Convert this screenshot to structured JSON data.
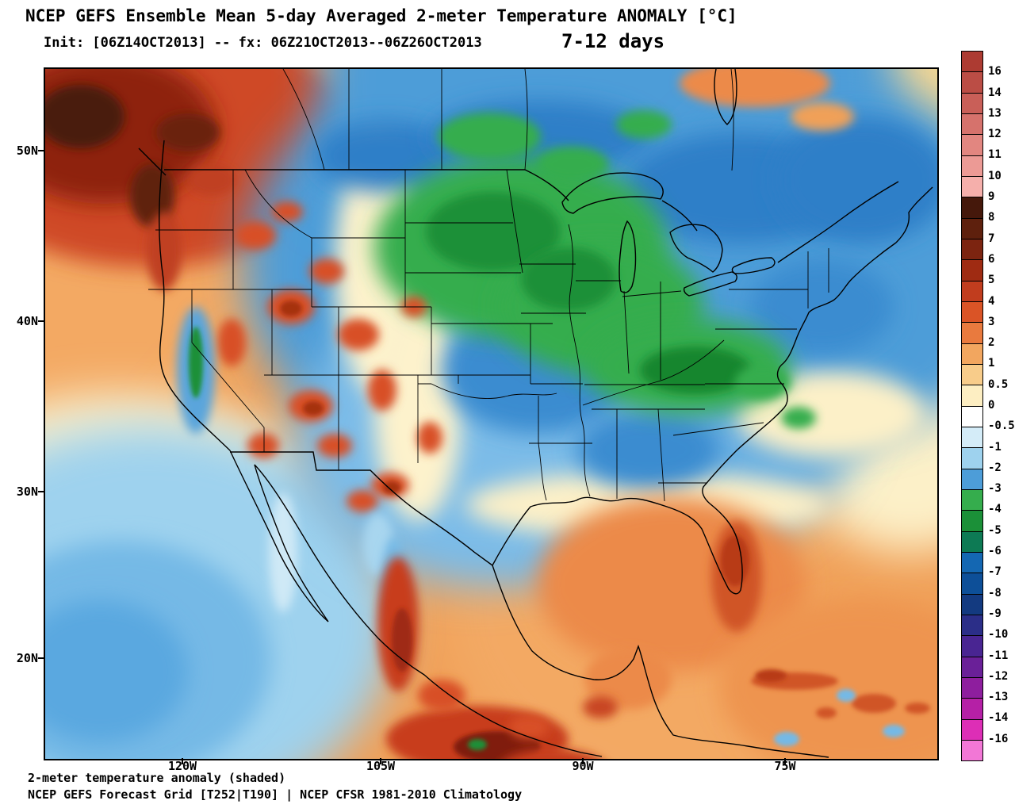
{
  "header": {
    "title": "NCEP GEFS Ensemble Mean 5-day Averaged 2-meter Temperature ANOMALY [°C]",
    "init_line": "Init: [06Z14OCT2013] -- fx: 06Z21OCT2013--06Z26OCT2013",
    "period_label": "7-12 days"
  },
  "map": {
    "lat_labels": [
      "50N",
      "40N",
      "30N",
      "20N"
    ],
    "lon_labels": [
      "120W",
      "105W",
      "90W",
      "75W"
    ]
  },
  "colorbar": {
    "labels": [
      "16",
      "14",
      "13",
      "12",
      "11",
      "10",
      "9",
      "8",
      "7",
      "6",
      "5",
      "4",
      "3",
      "2",
      "1",
      "0.5",
      "0",
      "-0.5",
      "-1",
      "-2",
      "-3",
      "-4",
      "-5",
      "-6",
      "-7",
      "-8",
      "-9",
      "-10",
      "-11",
      "-12",
      "-13",
      "-14",
      "-16"
    ],
    "colors": [
      "#ad3b32",
      "#bb4d45",
      "#c95f58",
      "#d6726c",
      "#e28680",
      "#ec9a95",
      "#f5afab",
      "#45180b",
      "#5e200d",
      "#7c2410",
      "#9f2b12",
      "#c13d1e",
      "#da5426",
      "#e97a3e",
      "#f2a65f",
      "#f8cc8a",
      "#fdeec2",
      "#ffffff",
      "#d4ecf8",
      "#9ed2ee",
      "#4d9dd8",
      "#35ad4d",
      "#1b9038",
      "#0d7a54",
      "#1467b2",
      "#0d4f98",
      "#133a80",
      "#2b2e88",
      "#492592",
      "#6a2098",
      "#8e1e9e",
      "#b520a6",
      "#dd2eb6",
      "#f277d6"
    ]
  },
  "footer": {
    "line1": "2-meter temperature anomaly (shaded)",
    "line2": "NCEP GEFS Forecast Grid [T252|T190] | NCEP CFSR 1981-2010 Climatology"
  },
  "chart_data": {
    "type": "heatmap",
    "title": "NCEP GEFS Ensemble Mean 5-day Averaged 2-meter Temperature ANOMALY [°C]",
    "variable": "2-meter temperature anomaly (shaded), 5-day averaged GEFS ensemble mean",
    "init": "06Z14OCT2013",
    "valid_window": "06Z21OCT2013-06Z26OCT2013",
    "lead": "7-12 days",
    "units": "°C",
    "climatology": "NCEP CFSR 1981-2010",
    "grid": "T252|T190",
    "x_ticks": [
      "120W",
      "105W",
      "90W",
      "75W"
    ],
    "y_ticks": [
      "50N",
      "40N",
      "30N",
      "20N"
    ],
    "scale_boundaries_degC": [
      16,
      14,
      13,
      12,
      11,
      10,
      9,
      8,
      7,
      6,
      5,
      4,
      3,
      2,
      1,
      0.5,
      0,
      -0.5,
      -1,
      -2,
      -3,
      -4,
      -5,
      -6,
      -7,
      -8,
      -9,
      -10,
      -11,
      -12,
      -13,
      -14,
      -16
    ],
    "regions": [
      {
        "area": "British Columbia / Pacific Northwest coast",
        "anomaly_c": "+5 to +9"
      },
      {
        "area": "Interior western US (Great Basin, Rockies, Southwest)",
        "anomaly_c": "+1 to +4 mottled"
      },
      {
        "area": "Upper Midwest core (MN, WI, IA, IL)",
        "anomaly_c": "-3 to -5"
      },
      {
        "area": "Ohio Valley / central Appalachians",
        "anomaly_c": "-3 to -4"
      },
      {
        "area": "Central and eastern US and southern Canada",
        "anomaly_c": "-1 to -3"
      },
      {
        "area": "Texas and southern Plains",
        "anomaly_c": "-1 to -2"
      },
      {
        "area": "Gulf of Mexico, Florida, Caribbean, western Atlantic",
        "anomaly_c": "+1 to +3"
      },
      {
        "area": "Central Mexico highlands",
        "anomaly_c": "+2 to +5"
      },
      {
        "area": "Subtropical NE Pacific off Baja",
        "anomaly_c": "-0.5 to -2"
      }
    ]
  }
}
